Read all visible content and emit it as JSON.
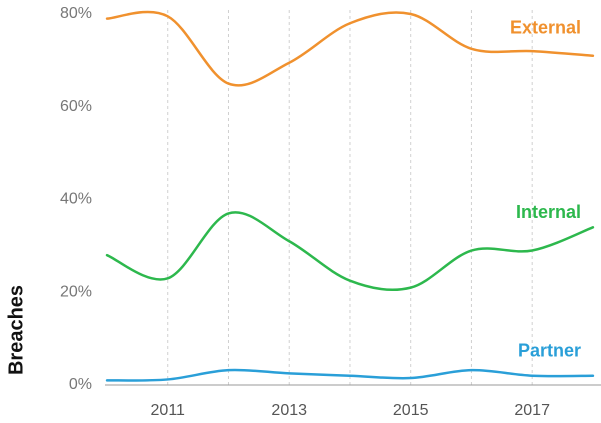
{
  "chart_data": {
    "type": "line",
    "y_axis_label": "Breaches",
    "x": [
      2010,
      2011,
      2012,
      2013,
      2014,
      2015,
      2016,
      2017,
      2018
    ],
    "series": [
      {
        "name": "External",
        "color": "#f0912e",
        "values": [
          79,
          79.5,
          65,
          69.5,
          78,
          80,
          72.5,
          72,
          71
        ]
      },
      {
        "name": "Internal",
        "color": "#2db84d",
        "values": [
          28,
          23,
          37,
          31,
          22.5,
          21,
          29,
          29,
          34
        ]
      },
      {
        "name": "Partner",
        "color": "#2a9fd8",
        "values": [
          1,
          1.2,
          3.2,
          2.5,
          2,
          1.5,
          3.2,
          2,
          2
        ]
      }
    ],
    "xlim": [
      2010,
      2018.1
    ],
    "xticks": [
      2011,
      2013,
      2015,
      2017
    ],
    "xgrid": [
      2011,
      2012,
      2013,
      2014,
      2015,
      2016,
      2017
    ],
    "ylim": [
      0,
      80
    ],
    "yticks": [
      {
        "value": 0,
        "label": "0%"
      },
      {
        "value": 20,
        "label": "20%"
      },
      {
        "value": 40,
        "label": "40%"
      },
      {
        "value": 60,
        "label": "60%"
      },
      {
        "value": 80,
        "label": "80%"
      }
    ]
  }
}
